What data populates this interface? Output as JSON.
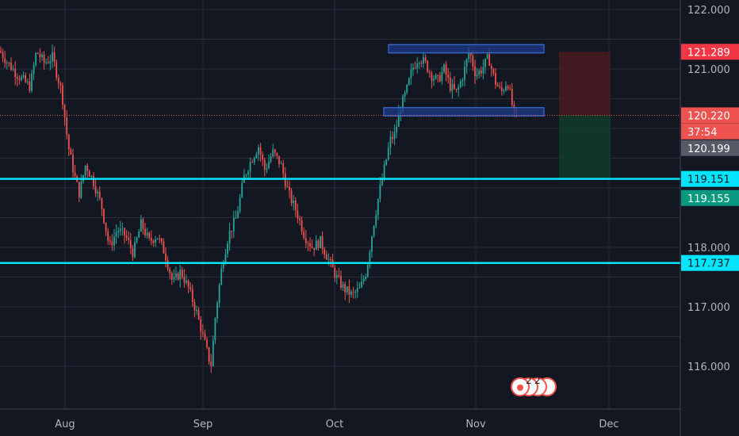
{
  "chart_data": {
    "type": "candlestick",
    "title": "",
    "xlabel": "",
    "ylabel": "",
    "ylim": [
      115.3,
      122.15
    ],
    "y_ticks": [
      "122.000",
      "121.000",
      "118.000",
      "117.000",
      "116.000"
    ],
    "x_ticks": [
      "Aug",
      "Sep",
      "Oct",
      "Nov",
      "Dec"
    ],
    "grid": true,
    "price_path": [
      [
        0,
        121.3
      ],
      [
        10,
        121.1
      ],
      [
        22,
        120.9
      ],
      [
        38,
        120.7
      ],
      [
        46,
        121.3
      ],
      [
        56,
        121.1
      ],
      [
        66,
        121.2
      ],
      [
        78,
        120.6
      ],
      [
        86,
        119.7
      ],
      [
        94,
        119.2
      ],
      [
        100,
        118.9
      ],
      [
        108,
        119.4
      ],
      [
        118,
        119.1
      ],
      [
        128,
        118.7
      ],
      [
        138,
        118.0
      ],
      [
        148,
        118.3
      ],
      [
        158,
        118.2
      ],
      [
        168,
        117.9
      ],
      [
        178,
        118.4
      ],
      [
        188,
        118.1
      ],
      [
        198,
        118.2
      ],
      [
        208,
        117.9
      ],
      [
        218,
        117.4
      ],
      [
        228,
        117.6
      ],
      [
        238,
        117.3
      ],
      [
        248,
        116.9
      ],
      [
        258,
        116.4
      ],
      [
        266,
        116.0
      ],
      [
        272,
        116.9
      ],
      [
        280,
        117.7
      ],
      [
        288,
        118.2
      ],
      [
        298,
        118.5
      ],
      [
        308,
        119.2
      ],
      [
        318,
        119.5
      ],
      [
        326,
        119.7
      ],
      [
        334,
        119.3
      ],
      [
        344,
        119.6
      ],
      [
        354,
        119.4
      ],
      [
        364,
        118.9
      ],
      [
        374,
        118.6
      ],
      [
        384,
        118.2
      ],
      [
        394,
        118.0
      ],
      [
        404,
        118.1
      ],
      [
        414,
        117.8
      ],
      [
        424,
        117.5
      ],
      [
        434,
        117.3
      ],
      [
        444,
        117.2
      ],
      [
        454,
        117.3
      ],
      [
        462,
        117.6
      ],
      [
        470,
        118.3
      ],
      [
        478,
        118.9
      ],
      [
        486,
        119.4
      ],
      [
        492,
        119.8
      ],
      [
        498,
        119.9
      ],
      [
        504,
        120.3
      ],
      [
        512,
        120.6
      ],
      [
        520,
        121.0
      ],
      [
        528,
        121.2
      ],
      [
        536,
        121.1
      ],
      [
        544,
        120.9
      ],
      [
        552,
        120.8
      ],
      [
        560,
        121.0
      ],
      [
        568,
        120.7
      ],
      [
        576,
        120.6
      ],
      [
        584,
        120.9
      ],
      [
        592,
        121.3
      ],
      [
        600,
        120.9
      ],
      [
        608,
        121.0
      ],
      [
        616,
        121.2
      ],
      [
        624,
        120.8
      ],
      [
        632,
        120.6
      ],
      [
        640,
        120.8
      ],
      [
        648,
        120.25
      ],
      [
        652,
        120.2
      ]
    ],
    "horizontal_lines": [
      {
        "name": "support-1",
        "price": 119.151,
        "label": "119.151",
        "color": "#00e5ff"
      },
      {
        "name": "support-2",
        "price": 117.737,
        "label": "117.737",
        "color": "#00e5ff"
      }
    ],
    "zones": [
      {
        "name": "resistance-zone",
        "top": 121.41,
        "bottom": 121.27,
        "x_start": 490,
        "x_end": 686
      },
      {
        "name": "support-zone",
        "top": 120.35,
        "bottom": 120.21,
        "x_start": 484,
        "x_end": 686
      }
    ],
    "position": {
      "entry": 120.22,
      "stop": 121.289,
      "target": 119.155,
      "x_start": 705,
      "x_end": 770
    },
    "price_labels": [
      {
        "name": "stop-price-label",
        "text": "121.289",
        "price": 121.289,
        "bg": "#f23645",
        "fg": "#ffffff"
      },
      {
        "name": "current-price-label",
        "text": "120.220",
        "price": 120.22,
        "bg": "#ef5350",
        "fg": "#ffffff"
      },
      {
        "name": "countdown-label",
        "text": "37:54",
        "price": 119.95,
        "bg": "#ef5350",
        "fg": "#ffffff"
      },
      {
        "name": "bid-price-label",
        "text": "120.199",
        "price": 119.67,
        "bg": "#555a66",
        "fg": "#ffffff"
      },
      {
        "name": "support-1-label",
        "text": "119.151",
        "price": 119.151,
        "bg": "#00e5ff",
        "fg": "#131722"
      },
      {
        "name": "target-price-label",
        "text": "119.155",
        "price": 118.83,
        "bg": "#089981",
        "fg": "#ffffff"
      },
      {
        "name": "support-2-label",
        "text": "117.737",
        "price": 117.737,
        "bg": "#00e5ff",
        "fg": "#131722"
      }
    ],
    "event_badges": [
      "2",
      "2"
    ],
    "colors": {
      "background": "#131722",
      "grid": "#2a2e39",
      "up": "#26a69a",
      "down": "#ef5350",
      "current_price_line": "#ef5350",
      "zone_fill": "#1e3a8a",
      "zone_border": "#3b6fd8",
      "stop_fill": "#4a1a21",
      "target_fill": "#113a29"
    }
  }
}
